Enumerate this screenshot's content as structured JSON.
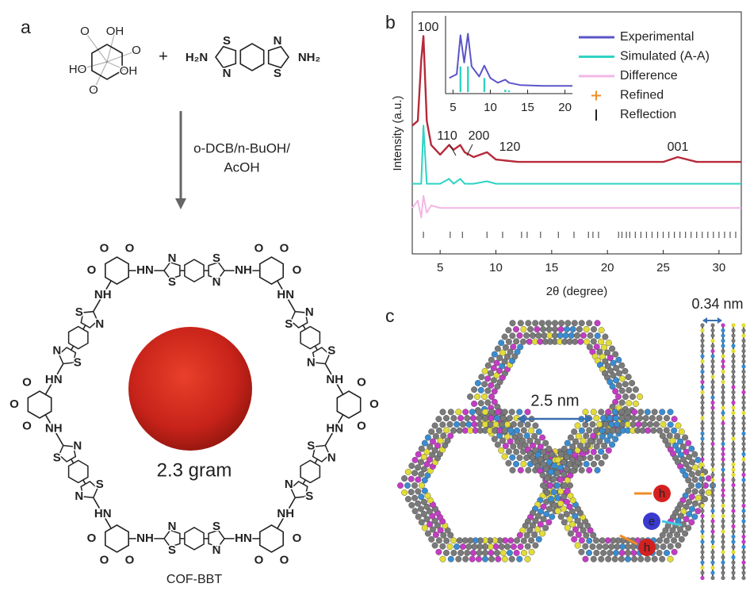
{
  "panel_labels": [
    "a",
    "b",
    "c"
  ],
  "reaction": {
    "reagent1_labels": [
      "O",
      "OH",
      "O",
      "HO",
      "OH",
      "O"
    ],
    "plus": "+",
    "reagent2_labels": [
      "H₂N",
      "S",
      "N",
      "N",
      "S",
      "NH₂"
    ],
    "conditions": [
      "o-DCB/n-BuOH/",
      "AcOH"
    ]
  },
  "cof": {
    "corners": [
      [
        "O",
        "O",
        "O"
      ],
      [
        "O",
        "O",
        "O"
      ],
      [
        "O",
        "O",
        "O"
      ],
      [
        "O",
        "O",
        "O"
      ],
      [
        "O",
        "O",
        "O"
      ],
      [
        "O",
        "O",
        "O"
      ]
    ],
    "linkers": [
      [
        "HN",
        "S",
        "N",
        "N",
        "S",
        "NH"
      ],
      [
        "HN",
        "S",
        "N",
        "N",
        "S",
        "NH"
      ],
      [
        "HN",
        "S",
        "N",
        "N",
        "S",
        "NH"
      ],
      [
        "HN",
        "S",
        "N",
        "N",
        "S",
        "NH"
      ],
      [
        "HN",
        "S",
        "N",
        "N",
        "S",
        "NH"
      ],
      [
        "HN",
        "S",
        "N",
        "N",
        "S",
        "NH"
      ]
    ],
    "photo_caption": "2.3 gram",
    "name": "COF-BBT"
  },
  "chart_data": [
    {
      "type": "line",
      "xlabel": "2θ (degree)",
      "ylabel": "Intensity (a.u.)",
      "xlim": [
        2.5,
        32
      ],
      "xticks": [
        5,
        10,
        15,
        20,
        25,
        30
      ],
      "ylim": [
        0,
        100
      ],
      "annotations": [
        "100",
        "110",
        "200",
        "120",
        "001"
      ],
      "series": [
        {
          "name": "Simulated (A-A)",
          "color": "#2fd3c3",
          "x": [
            2.5,
            3,
            3.3,
            3.5,
            3.8,
            4.2,
            5,
            5.8,
            6.2,
            6.8,
            7.2,
            8,
            9.2,
            10,
            12,
            15,
            20,
            25,
            26.3,
            28,
            32
          ],
          "values": [
            29,
            29,
            29,
            53,
            29,
            29,
            29,
            31,
            29,
            31,
            29,
            29,
            30,
            29,
            29,
            29,
            29,
            29,
            29,
            29,
            29
          ]
        },
        {
          "name": "Difference",
          "color": "#f2b8e6",
          "x": [
            2.5,
            3,
            3.3,
            3.5,
            3.8,
            4.2,
            5,
            5.8,
            6.2,
            6.8,
            7.2,
            8,
            9.2,
            10,
            12,
            15,
            20,
            25,
            26.3,
            28,
            32
          ],
          "values": [
            19,
            22,
            15,
            24,
            17,
            20,
            19,
            19,
            19,
            19,
            19,
            19,
            19,
            19,
            19,
            19,
            19,
            19,
            19,
            19,
            19
          ]
        },
        {
          "name": "Refined",
          "color": "#b52a3a",
          "marker": "+",
          "marker_color": "#f08c28",
          "x": [
            2.5,
            3,
            3.3,
            3.5,
            3.8,
            4.2,
            5,
            5.8,
            6.2,
            6.8,
            7.2,
            8,
            9.2,
            10,
            12,
            15,
            20,
            25,
            26.3,
            28,
            32
          ],
          "values": [
            53,
            55,
            80,
            90,
            55,
            45,
            41,
            45,
            43,
            45,
            42,
            40,
            42,
            39,
            38,
            38,
            38,
            38,
            40,
            38,
            38
          ]
        },
        {
          "name": "Reflection",
          "color": "#555555",
          "marker": "|",
          "x": [
            3.5,
            5.9,
            7,
            9.2,
            10.6,
            12.3,
            12.8,
            14,
            15.6,
            17,
            18.3,
            18.7,
            19.2,
            21,
            21.3,
            21.7,
            22,
            22.5,
            23,
            23.5,
            24,
            24.5,
            25,
            25.5,
            26,
            26.5,
            27,
            27.5,
            28,
            28.5,
            29,
            29.5,
            30,
            30.5,
            31,
            31.5
          ]
        }
      ]
    },
    {
      "type": "line",
      "xlim": [
        4,
        21
      ],
      "xticks": [
        5,
        10,
        15,
        20
      ],
      "ylim": [
        0,
        100
      ],
      "series": [
        {
          "name": "Experimental",
          "color": "#5b55c8",
          "x": [
            4.5,
            5.5,
            6,
            6.5,
            7,
            7.5,
            8.5,
            9.2,
            10,
            11,
            12,
            12.5,
            14,
            17,
            21
          ],
          "values": [
            20,
            25,
            75,
            40,
            77,
            35,
            22,
            36,
            20,
            14,
            18,
            14,
            11,
            10,
            10
          ]
        },
        {
          "color": "#2fd3c3",
          "marker": "stick",
          "x": [
            6,
            7,
            9.2,
            12,
            12.5,
            15
          ],
          "values": [
            35,
            35,
            20,
            5,
            4,
            2
          ]
        }
      ]
    }
  ],
  "model": {
    "pore": "2.5 nm",
    "spacing": "0.34 nm",
    "carriers": [
      "h",
      "e",
      "h"
    ]
  }
}
